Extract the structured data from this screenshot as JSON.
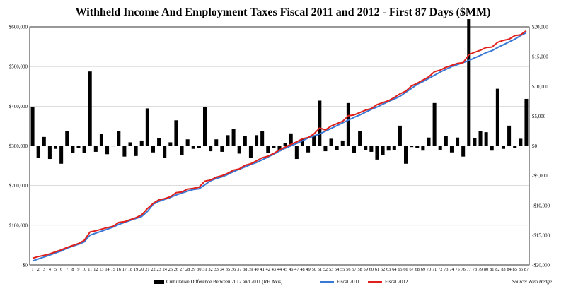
{
  "chart_data": {
    "type": "bar+line",
    "title": "Withheld Income And Employment Taxes Fiscal 2011 and 2012 - First 87 Days ($MM)",
    "source": "Source: Zero Hedge",
    "x": [
      1,
      2,
      3,
      4,
      5,
      6,
      7,
      8,
      9,
      10,
      11,
      12,
      13,
      14,
      15,
      16,
      17,
      18,
      19,
      20,
      21,
      22,
      23,
      24,
      25,
      26,
      27,
      28,
      29,
      30,
      31,
      32,
      33,
      34,
      35,
      36,
      37,
      38,
      39,
      40,
      41,
      42,
      43,
      44,
      45,
      46,
      47,
      48,
      49,
      50,
      51,
      52,
      53,
      54,
      55,
      56,
      57,
      58,
      59,
      60,
      61,
      62,
      63,
      64,
      65,
      66,
      67,
      68,
      69,
      70,
      71,
      72,
      73,
      74,
      75,
      76,
      77,
      78,
      79,
      80,
      81,
      82,
      83,
      84,
      85,
      86,
      87
    ],
    "left_axis": {
      "ylim": [
        0,
        600000
      ],
      "ticks": [
        0,
        100000,
        200000,
        300000,
        400000,
        500000,
        600000
      ],
      "tick_labels": [
        "$0",
        "$100,000",
        "$200,000",
        "$300,000",
        "$400,000",
        "$500,000",
        "$600,000"
      ]
    },
    "right_axis": {
      "ylim": [
        -20000,
        20000
      ],
      "ticks": [
        -20000,
        -15000,
        -10000,
        -5000,
        0,
        5000,
        10000,
        15000,
        20000
      ],
      "tick_labels": [
        "-$20,000",
        "-$15,000",
        "-$10,000",
        "-$5,000",
        "$0",
        "$5,000",
        "$10,000",
        "$15,000",
        "$20,000"
      ]
    },
    "grid": true,
    "legend_position": "bottom",
    "series": [
      {
        "name": "Cumulative Difference Between 2012 and 2011 (RH Axis)",
        "type": "bar",
        "axis": "right",
        "color": "#000000",
        "values": [
          6500,
          -2000,
          1500,
          -2200,
          -500,
          -3000,
          2500,
          -1200,
          -300,
          -1200,
          12500,
          -1000,
          2000,
          -1400,
          0,
          2500,
          -1800,
          600,
          -1700,
          900,
          6300,
          -1100,
          1300,
          -2000,
          600,
          4300,
          -1500,
          1100,
          -500,
          -400,
          6500,
          -900,
          1100,
          -1000,
          1800,
          2900,
          -1300,
          1700,
          -2000,
          1800,
          2500,
          -1200,
          -400,
          -900,
          500,
          2100,
          -2200,
          1200,
          -1100,
          1800,
          7600,
          -900,
          1200,
          -700,
          900,
          7200,
          -1200,
          2500,
          -700,
          -1000,
          -2300,
          -1600,
          -800,
          -700,
          3400,
          -3000,
          -200,
          -300,
          -800,
          1400,
          7200,
          -700,
          1600,
          -1100,
          1400,
          -1800,
          21300,
          1300,
          2500,
          2300,
          -800,
          9600,
          -500,
          3400,
          -300,
          1200,
          7900
        ],
        "bar_widths": []
      },
      {
        "name": "Fiscal 2011",
        "type": "line",
        "axis": "left",
        "color": "#3a78d6",
        "values": [
          10000,
          15000,
          20000,
          25000,
          30000,
          35000,
          42000,
          47000,
          52000,
          58000,
          75000,
          80000,
          85000,
          90000,
          95000,
          102000,
          107000,
          112000,
          117000,
          122000,
          135000,
          153000,
          160000,
          165000,
          170000,
          176000,
          181000,
          186000,
          190000,
          192000,
          202000,
          212000,
          218000,
          222000,
          228000,
          235000,
          241000,
          247000,
          253000,
          258000,
          265000,
          272000,
          279000,
          287000,
          294000,
          300000,
          306000,
          313000,
          320000,
          325000,
          330000,
          337000,
          344000,
          351000,
          358000,
          365000,
          372000,
          378000,
          385000,
          392000,
          398000,
          405000,
          412000,
          418000,
          425000,
          435000,
          445000,
          455000,
          462000,
          470000,
          478000,
          486000,
          493000,
          500000,
          505000,
          510000,
          515000,
          522000,
          528000,
          535000,
          540000,
          548000,
          555000,
          562000,
          569000,
          578000,
          585000
        ]
      },
      {
        "name": "Fiscal 2012",
        "type": "line",
        "axis": "left",
        "color": "#e0201b",
        "values": [
          17000,
          21000,
          24000,
          28000,
          33000,
          38000,
          44000,
          49000,
          54000,
          62000,
          83000,
          86000,
          90000,
          94000,
          97000,
          107000,
          109000,
          114000,
          119000,
          126000,
          142000,
          155000,
          164000,
          167000,
          172000,
          182000,
          184000,
          191000,
          193000,
          196000,
          211000,
          214000,
          221000,
          225000,
          231000,
          239000,
          242000,
          251000,
          255000,
          262000,
          270000,
          274000,
          281000,
          290000,
          297000,
          304000,
          310000,
          318000,
          321000,
          330000,
          345000,
          340000,
          350000,
          356000,
          362000,
          376000,
          378000,
          384000,
          390000,
          394000,
          404000,
          409000,
          414000,
          422000,
          431000,
          438000,
          451000,
          458000,
          466000,
          474000,
          487000,
          491000,
          498000,
          503000,
          508000,
          510000,
          530000,
          536000,
          541000,
          548000,
          549000,
          561000,
          566000,
          569000,
          578000,
          580000,
          590000
        ]
      }
    ]
  }
}
